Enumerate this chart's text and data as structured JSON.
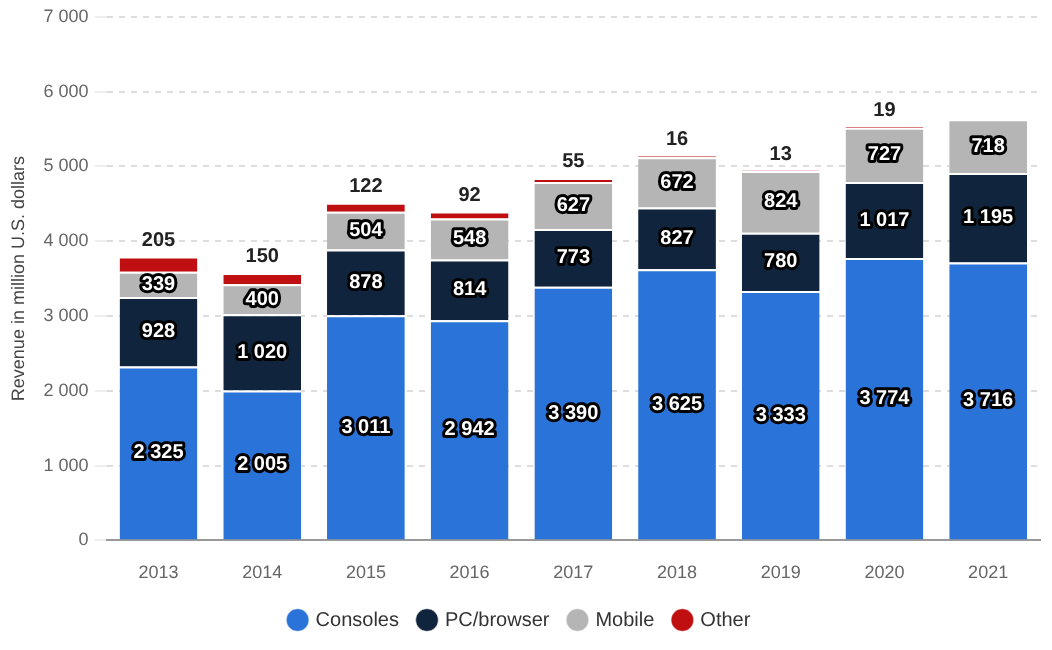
{
  "chart_data": {
    "type": "bar",
    "stacked": true,
    "ylabel": "Revenue in million U.S. dollars",
    "categories": [
      "2013",
      "2014",
      "2015",
      "2016",
      "2017",
      "2018",
      "2019",
      "2020",
      "2021"
    ],
    "ylim": [
      0,
      7000
    ],
    "yticks": [
      {
        "value": 0,
        "label": "0"
      },
      {
        "value": 1000,
        "label": "1 000"
      },
      {
        "value": 2000,
        "label": "2 000"
      },
      {
        "value": 3000,
        "label": "3 000"
      },
      {
        "value": 4000,
        "label": "4 000"
      },
      {
        "value": 5000,
        "label": "5 000"
      },
      {
        "value": 6000,
        "label": "6 000"
      },
      {
        "value": 7000,
        "label": "7 000"
      }
    ],
    "grid": "y",
    "legend": "bottom",
    "series": [
      {
        "name": "Consoles",
        "color": "#2a73d9",
        "values": [
          2325,
          2005,
          3011,
          2942,
          3390,
          3625,
          3333,
          3774,
          3716
        ],
        "value_labels": [
          "2 325",
          "2 005",
          "3 011",
          "2 942",
          "3 390",
          "3 625",
          "3 333",
          "3 774",
          "3 716"
        ]
      },
      {
        "name": "PC/browser",
        "color": "#10253d",
        "values": [
          928,
          1020,
          878,
          814,
          773,
          827,
          780,
          1017,
          1195
        ],
        "value_labels": [
          "928",
          "1 020",
          "878",
          "814",
          "773",
          "827",
          "780",
          "1 017",
          "1 195"
        ]
      },
      {
        "name": "Mobile",
        "color": "#b5b5b5",
        "values": [
          339,
          400,
          504,
          548,
          627,
          672,
          824,
          727,
          718
        ],
        "value_labels": [
          "339",
          "400",
          "504",
          "548",
          "627",
          "672",
          "824",
          "727",
          "718"
        ]
      },
      {
        "name": "Other",
        "color": "#c00f10",
        "values": [
          205,
          150,
          122,
          92,
          55,
          16,
          13,
          19,
          null
        ],
        "value_labels": [
          "205",
          "150",
          "122",
          "92",
          "55",
          "16",
          "13",
          "19",
          null
        ]
      }
    ]
  }
}
